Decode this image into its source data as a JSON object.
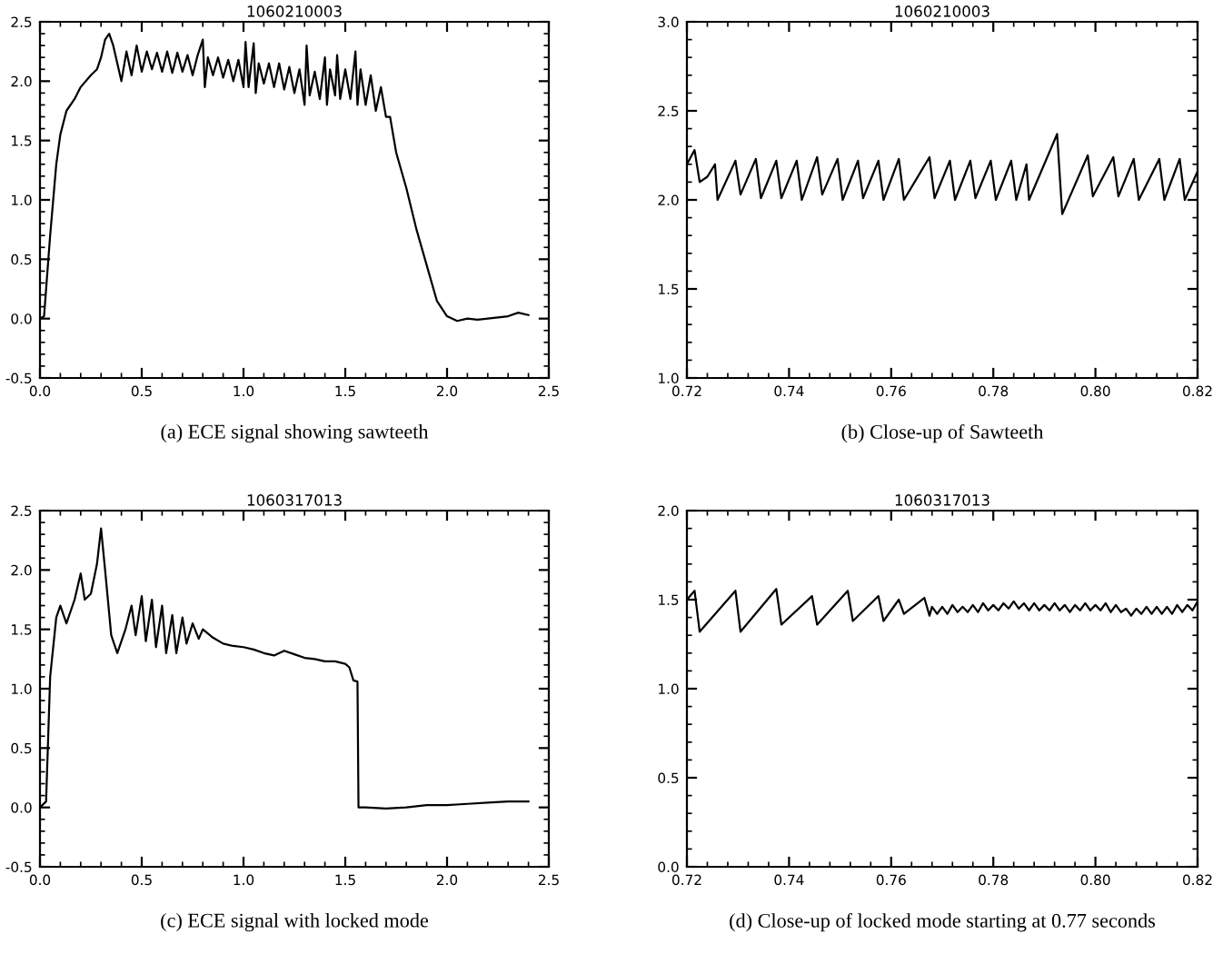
{
  "chart_data": [
    {
      "type": "line",
      "title": "1060210003",
      "annotations": [
        "(a) ECE signal showing sawteeth"
      ],
      "grid": false,
      "marker": "none",
      "line_style": "solid",
      "xlim": [
        0,
        2.5
      ],
      "ylim": [
        -0.5,
        2.5
      ],
      "xticks": [
        {
          "value": 0,
          "label": "0.0"
        },
        {
          "value": 0.5,
          "label": "0.5"
        },
        {
          "value": 1,
          "label": "1.0"
        },
        {
          "value": 1.5,
          "label": "1.5"
        },
        {
          "value": 2,
          "label": "2.0"
        },
        {
          "value": 2.5,
          "label": "2.5"
        }
      ],
      "yticks": [
        {
          "value": -0.5,
          "label": "-0.5"
        },
        {
          "value": 0,
          "label": "0.0"
        },
        {
          "value": 0.5,
          "label": "0.5"
        },
        {
          "value": 1,
          "label": "1.0"
        },
        {
          "value": 1.5,
          "label": "1.5"
        },
        {
          "value": 2,
          "label": "2.0"
        },
        {
          "value": 2.5,
          "label": "2.5"
        }
      ],
      "series": [
        {
          "color": "#000000",
          "x": [
            0.0,
            0.02,
            0.05,
            0.08,
            0.1,
            0.13,
            0.17,
            0.2,
            0.25,
            0.28,
            0.3,
            0.32,
            0.34,
            0.36,
            0.38,
            0.4,
            0.425,
            0.45,
            0.475,
            0.5,
            0.525,
            0.55,
            0.575,
            0.6,
            0.625,
            0.65,
            0.675,
            0.7,
            0.725,
            0.75,
            0.775,
            0.8,
            0.81,
            0.825,
            0.85,
            0.875,
            0.9,
            0.925,
            0.95,
            0.975,
            1.0,
            1.01,
            1.025,
            1.05,
            1.06,
            1.075,
            1.1,
            1.125,
            1.15,
            1.175,
            1.2,
            1.225,
            1.25,
            1.275,
            1.3,
            1.31,
            1.325,
            1.35,
            1.375,
            1.4,
            1.41,
            1.425,
            1.45,
            1.46,
            1.475,
            1.5,
            1.525,
            1.55,
            1.56,
            1.575,
            1.6,
            1.625,
            1.65,
            1.675,
            1.7,
            1.72,
            1.75,
            1.8,
            1.85,
            1.9,
            1.95,
            2.0,
            2.05,
            2.1,
            2.15,
            2.2,
            2.25,
            2.3,
            2.35,
            2.4
          ],
          "values": [
            0.0,
            0.02,
            0.7,
            1.3,
            1.55,
            1.75,
            1.85,
            1.95,
            2.05,
            2.1,
            2.2,
            2.35,
            2.4,
            2.3,
            2.15,
            2.0,
            2.25,
            2.05,
            2.3,
            2.08,
            2.25,
            2.1,
            2.24,
            2.08,
            2.25,
            2.07,
            2.24,
            2.08,
            2.22,
            2.05,
            2.22,
            2.35,
            1.95,
            2.2,
            2.05,
            2.2,
            2.03,
            2.18,
            2.0,
            2.18,
            1.95,
            2.33,
            1.95,
            2.32,
            1.9,
            2.15,
            1.98,
            2.15,
            1.95,
            2.15,
            1.93,
            2.12,
            1.9,
            2.1,
            1.8,
            2.3,
            1.88,
            2.08,
            1.85,
            2.2,
            1.8,
            2.1,
            1.88,
            2.22,
            1.85,
            2.1,
            1.85,
            2.25,
            1.8,
            2.1,
            1.8,
            2.05,
            1.75,
            1.95,
            1.7,
            1.7,
            1.4,
            1.1,
            0.75,
            0.45,
            0.15,
            0.02,
            -0.02,
            0.0,
            -0.01,
            0.0,
            0.01,
            0.02,
            0.05,
            0.03
          ]
        }
      ]
    },
    {
      "type": "line",
      "title": "1060210003",
      "annotations": [
        "(b) Close-up of Sawteeth"
      ],
      "grid": false,
      "marker": "none",
      "line_style": "solid",
      "xlim": [
        0.72,
        0.82
      ],
      "ylim": [
        1.0,
        3.0
      ],
      "xticks": [
        0.72,
        0.74,
        0.76,
        0.78,
        {
          "value": 0.8,
          "label": "0.80"
        },
        0.82
      ],
      "yticks": [
        {
          "value": 1,
          "label": "1.0"
        },
        1.5,
        {
          "value": 2,
          "label": "2.0"
        },
        2.5,
        {
          "value": 3,
          "label": "3.0"
        }
      ],
      "series": [
        {
          "color": "#000000",
          "x": [
            0.72,
            0.7215,
            0.7225,
            0.724,
            0.7255,
            0.726,
            0.7295,
            0.7305,
            0.7335,
            0.7345,
            0.7375,
            0.7385,
            0.7415,
            0.7425,
            0.7455,
            0.7465,
            0.7495,
            0.7505,
            0.7535,
            0.7545,
            0.7575,
            0.7585,
            0.7615,
            0.7625,
            0.7675,
            0.7685,
            0.7715,
            0.7725,
            0.7755,
            0.7765,
            0.7795,
            0.7805,
            0.7835,
            0.7845,
            0.7865,
            0.787,
            0.7925,
            0.7935,
            0.7985,
            0.7995,
            0.8035,
            0.8045,
            0.8075,
            0.8085,
            0.8125,
            0.8135,
            0.8165,
            0.8175,
            0.82
          ],
          "values": [
            2.2,
            2.28,
            2.1,
            2.13,
            2.2,
            2.0,
            2.22,
            2.03,
            2.23,
            2.01,
            2.22,
            2.01,
            2.22,
            2.0,
            2.24,
            2.03,
            2.23,
            2.0,
            2.22,
            2.01,
            2.22,
            2.0,
            2.23,
            2.0,
            2.24,
            2.01,
            2.22,
            2.0,
            2.22,
            2.01,
            2.22,
            2.0,
            2.22,
            2.0,
            2.2,
            2.0,
            2.37,
            1.92,
            2.25,
            2.02,
            2.24,
            2.02,
            2.23,
            2.0,
            2.23,
            2.0,
            2.23,
            2.0,
            2.16
          ]
        }
      ]
    },
    {
      "type": "line",
      "title": "1060317013",
      "annotations": [
        "(c) ECE signal with locked mode"
      ],
      "grid": false,
      "marker": "none",
      "line_style": "solid",
      "xlim": [
        0,
        2.5
      ],
      "ylim": [
        -0.5,
        2.5
      ],
      "xticks": [
        {
          "value": 0,
          "label": "0.0"
        },
        {
          "value": 0.5,
          "label": "0.5"
        },
        {
          "value": 1,
          "label": "1.0"
        },
        {
          "value": 1.5,
          "label": "1.5"
        },
        {
          "value": 2,
          "label": "2.0"
        },
        {
          "value": 2.5,
          "label": "2.5"
        }
      ],
      "yticks": [
        {
          "value": -0.5,
          "label": "-0.5"
        },
        {
          "value": 0,
          "label": "0.0"
        },
        {
          "value": 0.5,
          "label": "0.5"
        },
        {
          "value": 1,
          "label": "1.0"
        },
        {
          "value": 1.5,
          "label": "1.5"
        },
        {
          "value": 2,
          "label": "2.0"
        },
        {
          "value": 2.5,
          "label": "2.5"
        }
      ],
      "series": [
        {
          "color": "#000000",
          "x": [
            0.0,
            0.03,
            0.05,
            0.08,
            0.1,
            0.13,
            0.17,
            0.2,
            0.22,
            0.25,
            0.28,
            0.3,
            0.32,
            0.35,
            0.38,
            0.42,
            0.45,
            0.47,
            0.5,
            0.52,
            0.55,
            0.57,
            0.6,
            0.62,
            0.65,
            0.67,
            0.7,
            0.72,
            0.75,
            0.78,
            0.8,
            0.85,
            0.9,
            0.95,
            1.0,
            1.05,
            1.1,
            1.15,
            1.2,
            1.25,
            1.3,
            1.35,
            1.4,
            1.45,
            1.5,
            1.52,
            1.54,
            1.56,
            1.565,
            1.6,
            1.7,
            1.8,
            1.9,
            2.0,
            2.1,
            2.2,
            2.3,
            2.4
          ],
          "values": [
            0.0,
            0.05,
            1.1,
            1.6,
            1.7,
            1.55,
            1.75,
            1.97,
            1.75,
            1.8,
            2.05,
            2.35,
            2.0,
            1.45,
            1.3,
            1.5,
            1.7,
            1.45,
            1.78,
            1.4,
            1.75,
            1.35,
            1.7,
            1.3,
            1.62,
            1.3,
            1.6,
            1.38,
            1.55,
            1.42,
            1.5,
            1.43,
            1.38,
            1.36,
            1.35,
            1.33,
            1.3,
            1.28,
            1.32,
            1.29,
            1.26,
            1.25,
            1.23,
            1.23,
            1.21,
            1.18,
            1.07,
            1.06,
            0.0,
            0.0,
            -0.01,
            0.0,
            0.02,
            0.02,
            0.03,
            0.04,
            0.05,
            0.05
          ]
        }
      ]
    },
    {
      "type": "line",
      "title": "1060317013",
      "annotations": [
        "(d) Close-up of locked mode starting at 0.77 seconds"
      ],
      "grid": false,
      "marker": "none",
      "line_style": "solid",
      "xlim": [
        0.72,
        0.82
      ],
      "ylim": [
        0.0,
        2.0
      ],
      "xticks": [
        0.72,
        0.74,
        0.76,
        0.78,
        {
          "value": 0.8,
          "label": "0.80"
        },
        0.82
      ],
      "yticks": [
        {
          "value": 0,
          "label": "0.0"
        },
        0.5,
        {
          "value": 1,
          "label": "1.0"
        },
        1.5,
        {
          "value": 2,
          "label": "2.0"
        }
      ],
      "series": [
        {
          "color": "#000000",
          "x": [
            0.72,
            0.7215,
            0.7225,
            0.7295,
            0.7305,
            0.7375,
            0.7385,
            0.7445,
            0.7455,
            0.7515,
            0.7525,
            0.7575,
            0.7585,
            0.7615,
            0.7625,
            0.7665,
            0.7675,
            0.768,
            0.769,
            0.77,
            0.771,
            0.772,
            0.773,
            0.774,
            0.775,
            0.776,
            0.777,
            0.778,
            0.779,
            0.78,
            0.781,
            0.782,
            0.783,
            0.784,
            0.785,
            0.786,
            0.787,
            0.788,
            0.789,
            0.79,
            0.791,
            0.792,
            0.793,
            0.794,
            0.795,
            0.796,
            0.797,
            0.798,
            0.799,
            0.8,
            0.801,
            0.802,
            0.803,
            0.804,
            0.805,
            0.806,
            0.807,
            0.808,
            0.809,
            0.81,
            0.811,
            0.812,
            0.813,
            0.814,
            0.815,
            0.816,
            0.817,
            0.818,
            0.819,
            0.82
          ],
          "values": [
            1.5,
            1.55,
            1.32,
            1.55,
            1.32,
            1.56,
            1.36,
            1.52,
            1.36,
            1.55,
            1.38,
            1.52,
            1.38,
            1.5,
            1.42,
            1.51,
            1.41,
            1.46,
            1.42,
            1.46,
            1.42,
            1.47,
            1.43,
            1.46,
            1.43,
            1.47,
            1.43,
            1.48,
            1.44,
            1.47,
            1.44,
            1.48,
            1.45,
            1.49,
            1.45,
            1.48,
            1.44,
            1.48,
            1.44,
            1.47,
            1.44,
            1.48,
            1.44,
            1.47,
            1.43,
            1.47,
            1.44,
            1.48,
            1.44,
            1.47,
            1.44,
            1.48,
            1.43,
            1.47,
            1.43,
            1.45,
            1.41,
            1.45,
            1.42,
            1.46,
            1.42,
            1.46,
            1.42,
            1.46,
            1.42,
            1.47,
            1.43,
            1.47,
            1.44,
            1.49
          ]
        }
      ]
    }
  ]
}
